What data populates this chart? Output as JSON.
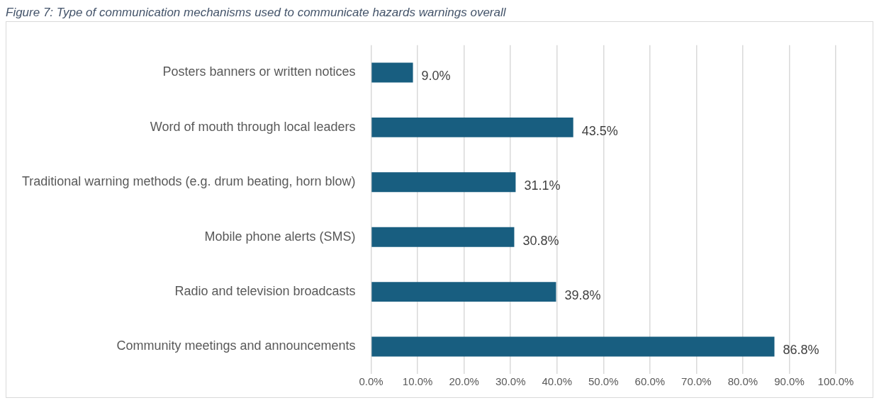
{
  "chart_data": {
    "type": "bar",
    "orientation": "horizontal",
    "title": "Figure 7: Type of communication mechanisms used to communicate hazards warnings overall",
    "categories": [
      "Posters banners or written notices",
      "Word of mouth through local leaders",
      "Traditional warning methods (e.g. drum beating, horn blow)",
      "Mobile phone alerts (SMS)",
      "Radio and television broadcasts",
      "Community meetings and announcements"
    ],
    "values": [
      9.0,
      43.5,
      31.1,
      30.8,
      39.8,
      86.8
    ],
    "value_labels": [
      "9.0%",
      "43.5%",
      "31.1%",
      "30.8%",
      "39.8%",
      "86.8%"
    ],
    "color": "#185e80",
    "xlim": [
      0,
      100
    ],
    "xticks": [
      {
        "value": 0,
        "label": "0.0%"
      },
      {
        "value": 10,
        "label": "10.0%"
      },
      {
        "value": 20,
        "label": "20.0%"
      },
      {
        "value": 30,
        "label": "30.0%"
      },
      {
        "value": 40,
        "label": "40.0%"
      },
      {
        "value": 50,
        "label": "50.0%"
      },
      {
        "value": 60,
        "label": "60.0%"
      },
      {
        "value": 70,
        "label": "70.0%"
      },
      {
        "value": 80,
        "label": "80.0%"
      },
      {
        "value": 90,
        "label": "90.0%"
      },
      {
        "value": 100,
        "label": "100.0%"
      }
    ],
    "grid": "x",
    "legend": false
  }
}
